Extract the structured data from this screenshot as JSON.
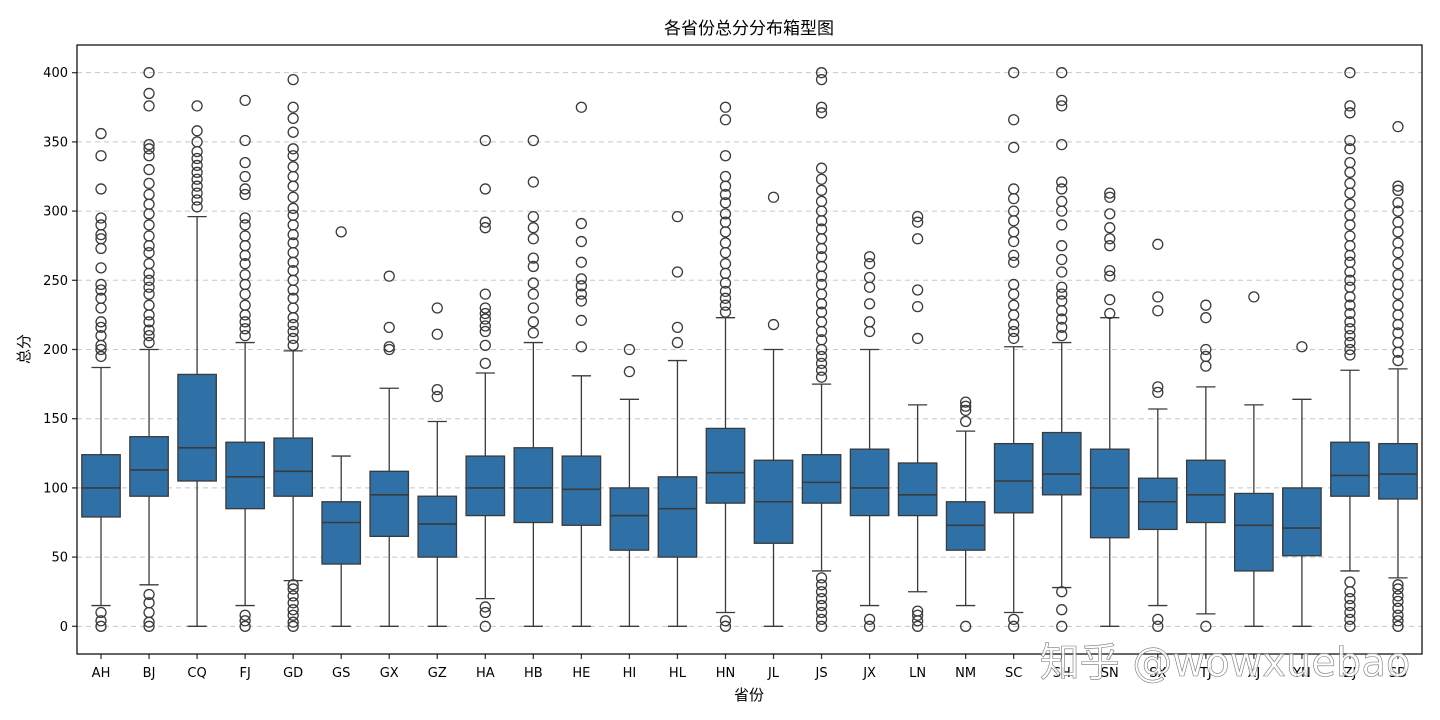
{
  "watermark": "知乎 @wowxuebao",
  "chart_data": {
    "type": "box",
    "title": "各省份总分分布箱型图",
    "xlabel": "省份",
    "ylabel": "总分",
    "ylim": [
      -20,
      420
    ],
    "yticks": [
      0,
      50,
      100,
      150,
      200,
      250,
      300,
      350,
      400
    ],
    "grid": "y-dashed",
    "box_color": "#2f71a6",
    "categories": [
      "AH",
      "BJ",
      "CQ",
      "FJ",
      "GD",
      "GS",
      "GX",
      "GZ",
      "HA",
      "HB",
      "HE",
      "HI",
      "HL",
      "HN",
      "JL",
      "JS",
      "JX",
      "LN",
      "NM",
      "SC",
      "SH",
      "SN",
      "SX",
      "TJ",
      "XJ",
      "YN",
      "ZJ",
      "SD"
    ],
    "series": [
      {
        "name": "AH",
        "q1": 79,
        "median": 100,
        "q3": 124,
        "whislo": 15,
        "whishi": 187,
        "fliers": [
          0,
          4,
          10,
          195,
          200,
          203,
          210,
          216,
          220,
          230,
          237,
          243,
          247,
          259,
          273,
          280,
          283,
          290,
          295,
          316,
          340,
          356
        ]
      },
      {
        "name": "BJ",
        "q1": 94,
        "median": 113,
        "q3": 137,
        "whislo": 30,
        "whishi": 200,
        "fliers": [
          0,
          3,
          10,
          17,
          23,
          205,
          210,
          214,
          220,
          225,
          232,
          240,
          245,
          250,
          255,
          262,
          270,
          275,
          282,
          290,
          298,
          305,
          312,
          320,
          330,
          340,
          345,
          348,
          376,
          385,
          400
        ]
      },
      {
        "name": "CQ",
        "q1": 105,
        "median": 129,
        "q3": 182,
        "whislo": 0,
        "whishi": 296,
        "fliers": [
          303,
          308,
          313,
          318,
          323,
          328,
          333,
          338,
          343,
          350,
          358,
          376
        ]
      },
      {
        "name": "FJ",
        "q1": 85,
        "median": 108,
        "q3": 133,
        "whislo": 15,
        "whishi": 205,
        "fliers": [
          0,
          4,
          8,
          210,
          215,
          220,
          225,
          232,
          240,
          247,
          254,
          262,
          268,
          275,
          282,
          290,
          295,
          312,
          316,
          325,
          335,
          351,
          380
        ]
      },
      {
        "name": "GD",
        "q1": 94,
        "median": 112,
        "q3": 136,
        "whislo": 33,
        "whishi": 199,
        "fliers": [
          0,
          3,
          8,
          12,
          17,
          22,
          27,
          30,
          203,
          208,
          213,
          218,
          223,
          230,
          237,
          243,
          250,
          257,
          263,
          270,
          277,
          283,
          290,
          297,
          302,
          310,
          318,
          325,
          332,
          340,
          345,
          357,
          367,
          375,
          395
        ]
      },
      {
        "name": "GS",
        "q1": 45,
        "median": 75,
        "q3": 90,
        "whislo": 0,
        "whishi": 123,
        "fliers": [
          285
        ]
      },
      {
        "name": "GX",
        "q1": 65,
        "median": 95,
        "q3": 112,
        "whislo": 0,
        "whishi": 172,
        "fliers": [
          200,
          202,
          216,
          253
        ]
      },
      {
        "name": "GZ",
        "q1": 50,
        "median": 74,
        "q3": 94,
        "whislo": 0,
        "whishi": 148,
        "fliers": [
          166,
          171,
          211,
          230
        ]
      },
      {
        "name": "HA",
        "q1": 80,
        "median": 100,
        "q3": 123,
        "whislo": 20,
        "whishi": 183,
        "fliers": [
          0,
          10,
          14,
          190,
          203,
          213,
          217,
          222,
          226,
          230,
          240,
          288,
          292,
          316,
          351
        ]
      },
      {
        "name": "HB",
        "q1": 75,
        "median": 100,
        "q3": 129,
        "whislo": 0,
        "whishi": 205,
        "fliers": [
          212,
          220,
          230,
          240,
          248,
          260,
          266,
          280,
          288,
          296,
          321,
          351
        ]
      },
      {
        "name": "HE",
        "q1": 73,
        "median": 99,
        "q3": 123,
        "whislo": 0,
        "whishi": 181,
        "fliers": [
          202,
          221,
          235,
          240,
          246,
          251,
          263,
          278,
          291,
          375
        ]
      },
      {
        "name": "HI",
        "q1": 55,
        "median": 80,
        "q3": 100,
        "whislo": 0,
        "whishi": 164,
        "fliers": [
          184,
          200
        ]
      },
      {
        "name": "HL",
        "q1": 50,
        "median": 85,
        "q3": 108,
        "whislo": 0,
        "whishi": 192,
        "fliers": [
          205,
          216,
          256,
          296
        ]
      },
      {
        "name": "HN",
        "q1": 89,
        "median": 111,
        "q3": 143,
        "whislo": 10,
        "whishi": 223,
        "fliers": [
          0,
          4,
          227,
          232,
          237,
          242,
          248,
          255,
          262,
          270,
          277,
          285,
          292,
          298,
          306,
          312,
          318,
          325,
          340,
          366,
          375
        ]
      },
      {
        "name": "JL",
        "q1": 60,
        "median": 90,
        "q3": 120,
        "whislo": 0,
        "whishi": 200,
        "fliers": [
          218,
          310
        ]
      },
      {
        "name": "JS",
        "q1": 89,
        "median": 104,
        "q3": 124,
        "whislo": 40,
        "whishi": 175,
        "fliers": [
          0,
          5,
          10,
          15,
          20,
          25,
          30,
          35,
          180,
          185,
          190,
          195,
          200,
          207,
          213,
          220,
          227,
          233,
          240,
          247,
          253,
          260,
          267,
          273,
          280,
          287,
          293,
          300,
          307,
          315,
          323,
          331,
          371,
          375,
          395,
          400
        ]
      },
      {
        "name": "JX",
        "q1": 80,
        "median": 100,
        "q3": 128,
        "whislo": 15,
        "whishi": 200,
        "fliers": [
          0,
          5,
          213,
          220,
          233,
          245,
          252,
          262,
          267
        ]
      },
      {
        "name": "LN",
        "q1": 80,
        "median": 95,
        "q3": 118,
        "whislo": 25,
        "whishi": 160,
        "fliers": [
          0,
          4,
          8,
          11,
          208,
          231,
          243,
          280,
          292,
          296
        ]
      },
      {
        "name": "NM",
        "q1": 55,
        "median": 73,
        "q3": 90,
        "whislo": 15,
        "whishi": 141,
        "fliers": [
          0,
          148,
          156,
          159,
          162
        ]
      },
      {
        "name": "SC",
        "q1": 82,
        "median": 105,
        "q3": 132,
        "whislo": 10,
        "whishi": 202,
        "fliers": [
          0,
          5,
          208,
          213,
          218,
          225,
          232,
          240,
          247,
          263,
          268,
          278,
          285,
          293,
          300,
          309,
          316,
          346,
          366,
          400
        ]
      },
      {
        "name": "SH",
        "q1": 95,
        "median": 110,
        "q3": 140,
        "whislo": 28,
        "whishi": 205,
        "fliers": [
          0,
          12,
          25,
          210,
          216,
          222,
          228,
          235,
          240,
          245,
          256,
          265,
          275,
          290,
          300,
          307,
          316,
          321,
          348,
          376,
          380,
          400
        ]
      },
      {
        "name": "SN",
        "q1": 64,
        "median": 100,
        "q3": 128,
        "whislo": 0,
        "whishi": 223,
        "fliers": [
          226,
          236,
          253,
          257,
          275,
          280,
          288,
          298,
          310,
          313
        ]
      },
      {
        "name": "SX",
        "q1": 70,
        "median": 90,
        "q3": 107,
        "whislo": 15,
        "whishi": 157,
        "fliers": [
          0,
          5,
          169,
          173,
          228,
          238,
          276
        ]
      },
      {
        "name": "TJ",
        "q1": 75,
        "median": 95,
        "q3": 120,
        "whislo": 9,
        "whishi": 173,
        "fliers": [
          0,
          188,
          195,
          200,
          223,
          232
        ]
      },
      {
        "name": "XJ",
        "q1": 40,
        "median": 73,
        "q3": 96,
        "whislo": 0,
        "whishi": 160,
        "fliers": [
          238
        ]
      },
      {
        "name": "YN",
        "q1": 51,
        "median": 71,
        "q3": 100,
        "whislo": 0,
        "whishi": 164,
        "fliers": [
          202
        ]
      },
      {
        "name": "ZJ",
        "q1": 94,
        "median": 109,
        "q3": 133,
        "whislo": 40,
        "whishi": 185,
        "fliers": [
          0,
          5,
          10,
          15,
          20,
          25,
          32,
          196,
          200,
          205,
          210,
          215,
          220,
          226,
          232,
          238,
          245,
          250,
          256,
          263,
          268,
          275,
          282,
          290,
          297,
          305,
          313,
          320,
          328,
          335,
          345,
          351,
          371,
          376,
          400
        ]
      },
      {
        "name": "SD",
        "q1": 92,
        "median": 110,
        "q3": 132,
        "whislo": 35,
        "whishi": 186,
        "fliers": [
          0,
          4,
          8,
          13,
          18,
          22,
          27,
          30,
          192,
          198,
          205,
          212,
          218,
          225,
          232,
          240,
          247,
          254,
          262,
          270,
          277,
          285,
          292,
          300,
          306,
          315,
          318,
          361
        ]
      }
    ]
  }
}
